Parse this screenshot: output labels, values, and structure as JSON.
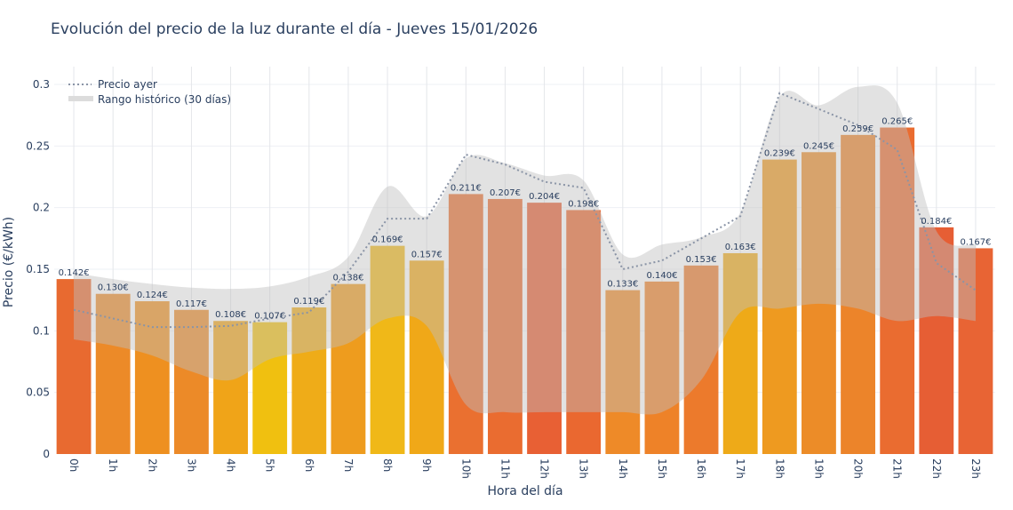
{
  "chart_data": {
    "type": "bar",
    "title": "Evolución del precio de la luz durante el día - Jueves 15/01/2026",
    "xlabel": "Hora del día",
    "ylabel": "Precio (€/kWh)",
    "ylim": [
      0,
      0.31
    ],
    "yticks": [
      0,
      0.05,
      0.1,
      0.15,
      0.2,
      0.25,
      0.3
    ],
    "ytick_labels": [
      "0",
      "0.05",
      "0.1",
      "0.15",
      "0.2",
      "0.25",
      "0.3"
    ],
    "grid": true,
    "legend_position": "top-left",
    "categories": [
      "0h",
      "1h",
      "2h",
      "3h",
      "4h",
      "5h",
      "6h",
      "7h",
      "8h",
      "9h",
      "10h",
      "11h",
      "12h",
      "13h",
      "14h",
      "15h",
      "16h",
      "17h",
      "18h",
      "19h",
      "20h",
      "21h",
      "22h",
      "23h"
    ],
    "values": [
      0.142,
      0.13,
      0.124,
      0.117,
      0.108,
      0.107,
      0.119,
      0.138,
      0.169,
      0.157,
      0.211,
      0.207,
      0.204,
      0.198,
      0.133,
      0.14,
      0.153,
      0.163,
      0.239,
      0.245,
      0.259,
      0.265,
      0.184,
      0.167
    ],
    "data_labels": [
      "0.142€",
      "0.130€",
      "0.124€",
      "0.117€",
      "0.108€",
      "0.107€",
      "0.119€",
      "0.138€",
      "0.169€",
      "0.157€",
      "0.211€",
      "0.207€",
      "0.204€",
      "0.198€",
      "0.133€",
      "0.140€",
      "0.153€",
      "0.163€",
      "0.239€",
      "0.245€",
      "0.259€",
      "0.265€",
      "0.184€",
      "0.167€"
    ],
    "bar_colors": [
      "#e86a30",
      "#ec8a28",
      "#ee9020",
      "#ec8a28",
      "#f0a418",
      "#f0c010",
      "#efac18",
      "#ee9c1e",
      "#f0b818",
      "#f0a818",
      "#ea7030",
      "#ea6c30",
      "#e86034",
      "#ea6830",
      "#ee8a28",
      "#ee8228",
      "#ec7a2c",
      "#eeaa18",
      "#ee9a20",
      "#ec8c28",
      "#ec842a",
      "#ea6c30",
      "#e65e34",
      "#e86434"
    ],
    "series": [
      {
        "name": "Precio ayer",
        "type": "line",
        "style": "dotted",
        "color": "#8a94a6",
        "values": [
          0.117,
          0.11,
          0.103,
          0.103,
          0.104,
          0.11,
          0.115,
          0.148,
          0.191,
          0.191,
          0.243,
          0.235,
          0.221,
          0.216,
          0.15,
          0.157,
          0.175,
          0.193,
          0.293,
          0.28,
          0.267,
          0.247,
          0.155,
          0.133
        ]
      },
      {
        "name": "Rango histórico (30 días)",
        "type": "band",
        "color": "#c8c8c8",
        "upper": [
          0.147,
          0.142,
          0.138,
          0.135,
          0.134,
          0.136,
          0.144,
          0.16,
          0.217,
          0.193,
          0.24,
          0.236,
          0.226,
          0.222,
          0.162,
          0.17,
          0.176,
          0.196,
          0.29,
          0.283,
          0.298,
          0.285,
          0.181,
          0.17
        ],
        "lower": [
          0.093,
          0.088,
          0.08,
          0.067,
          0.06,
          0.077,
          0.083,
          0.09,
          0.11,
          0.104,
          0.04,
          0.034,
          0.034,
          0.034,
          0.034,
          0.034,
          0.06,
          0.115,
          0.118,
          0.122,
          0.118,
          0.108,
          0.112,
          0.108
        ]
      }
    ]
  }
}
